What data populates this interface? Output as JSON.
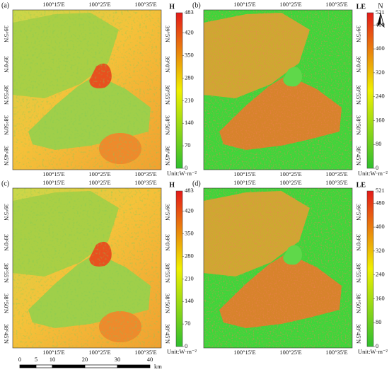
{
  "panels": [
    {
      "label": "(a)",
      "variable": "H",
      "kind": "H",
      "unit": "Unit:W·m⁻²",
      "lon_labels": [
        "100°15'E",
        "100°25'E",
        "100°35'E"
      ],
      "lat_labels": [
        "39°5'N",
        "39°0'N",
        "38°55'N",
        "38°50'N",
        "38°45'N"
      ],
      "colorbar_max": 483,
      "colorbar_ticks": [
        420,
        350,
        280,
        210,
        140,
        70,
        0
      ],
      "left_lat": true
    },
    {
      "label": "(b)",
      "variable": "LE",
      "kind": "LE",
      "unit": "Unit:W·m⁻²",
      "lon_labels": [
        "100°15'E",
        "100°25'E",
        "100°35'E"
      ],
      "lat_labels": [
        "39°5'N",
        "39°0'N",
        "38°55'N",
        "38°50'N",
        "38°45'N"
      ],
      "colorbar_max": 521,
      "colorbar_ticks": [
        480,
        400,
        320,
        240,
        160,
        80,
        0
      ],
      "left_lat": false
    },
    {
      "label": "(c)",
      "variable": "H",
      "kind": "H",
      "unit": "Unit:W·m⁻²",
      "lon_labels": [
        "100°15'E",
        "100°25'E",
        "100°35'E"
      ],
      "lat_labels": [
        "39°5'N",
        "39°0'N",
        "38°55'N",
        "38°50'N",
        "38°45'N"
      ],
      "colorbar_max": 483,
      "colorbar_ticks": [
        420,
        350,
        280,
        210,
        140,
        70,
        0
      ],
      "left_lat": true
    },
    {
      "label": "(d)",
      "variable": "LE",
      "kind": "LE",
      "unit": "Unit:W·m⁻²",
      "lon_labels": [
        "100°15'E",
        "100°25'E",
        "100°35'E"
      ],
      "lat_labels": [
        "39°5'N",
        "39°0'N",
        "38°55'N",
        "38°50'N",
        "38°45'N"
      ],
      "colorbar_max": 521,
      "colorbar_ticks": [
        480,
        400,
        320,
        240,
        160,
        80,
        0
      ],
      "left_lat": false
    }
  ],
  "north": "N",
  "scale_bar": {
    "labels": [
      "0",
      "5",
      "10",
      "20",
      "30",
      "40"
    ],
    "unit": "km"
  }
}
